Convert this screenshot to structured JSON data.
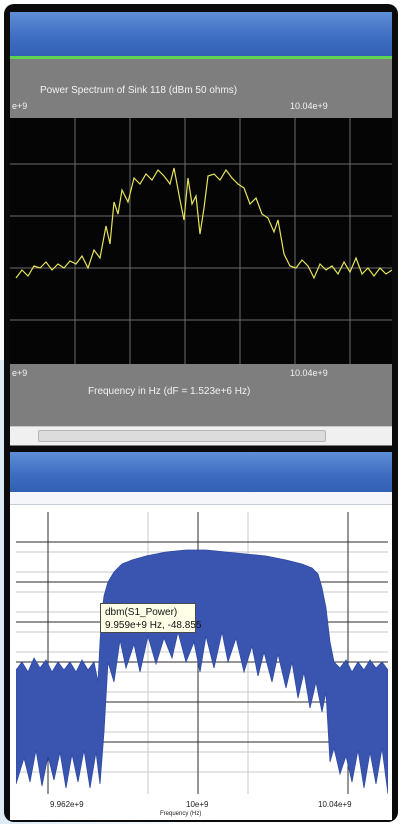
{
  "top_plot": {
    "title": "Power Spectrum of Sink 118 (dBm 50 ohms)",
    "xlabel": "Frequency in Hz (dF = 1.523e+6 Hz)",
    "tick_top_left": "e+9",
    "tick_top_right": "10.04e+9",
    "tick_bottom_left": "e+9",
    "tick_bottom_right": "10.04e+9",
    "trace_color": "#e6e35a",
    "grid_color": "#6b6b6b"
  },
  "bottom_plot": {
    "xlabel": "Frequency (Hz)",
    "tick_left": "9.962e+9",
    "tick_mid": "10e+9",
    "tick_right": "10.04e+9",
    "trace_color": "#3a55b0",
    "tooltip_name": "dbm(S1_Power)",
    "tooltip_value": "9.959e+9 Hz, -48.855"
  }
}
